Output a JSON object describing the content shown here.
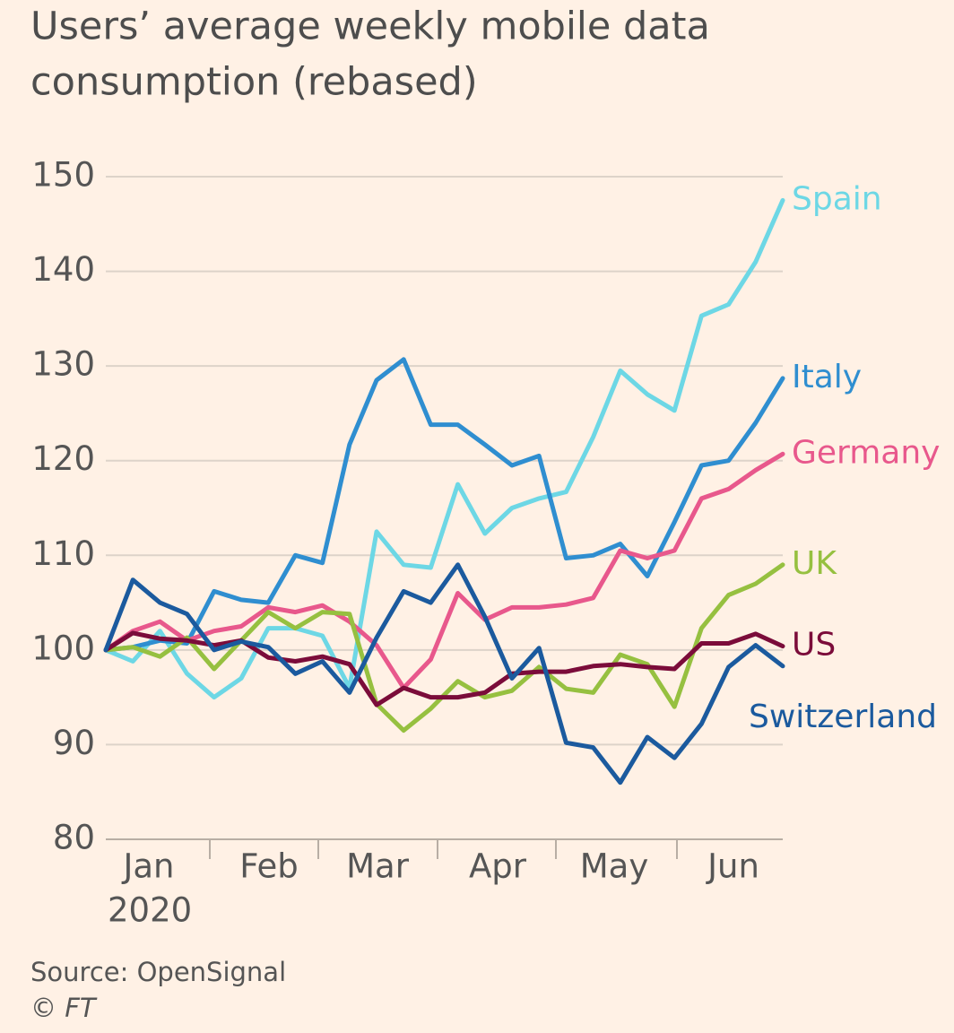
{
  "chart_data": {
    "type": "line",
    "title": "Users’ average weekly mobile data consumption (rebased)",
    "months": [
      "Jan",
      "Feb",
      "Mar",
      "Apr",
      "May",
      "Jun"
    ],
    "year": "2020",
    "source": "Source: OpenSignal",
    "credit": "© FT",
    "ylim": [
      80,
      150
    ],
    "yticks": [
      80,
      90,
      100,
      110,
      120,
      130,
      140,
      150
    ],
    "grid": true,
    "series": [
      {
        "name": "Spain",
        "color": "#6dd7e5",
        "values": [
          100,
          98.8,
          102,
          97.5,
          95,
          97,
          102.3,
          102.3,
          101.5,
          96,
          112.5,
          109,
          108.7,
          117.5,
          112.3,
          115,
          116,
          116.7,
          122.5,
          129.5,
          127,
          125.3,
          135.3,
          136.5,
          141,
          147.5
        ]
      },
      {
        "name": "Italy",
        "color": "#2f8ed0",
        "values": [
          100,
          100.3,
          101,
          100.7,
          106.2,
          105.3,
          105,
          110,
          109.2,
          121.7,
          128.5,
          130.7,
          123.8,
          123.8,
          121.7,
          119.5,
          120.5,
          109.7,
          110,
          111.2,
          107.8,
          113.5,
          119.5,
          120,
          124,
          128.7
        ]
      },
      {
        "name": "Germany",
        "color": "#e8588c",
        "values": [
          100,
          102,
          103,
          101,
          102,
          102.5,
          104.5,
          104,
          104.7,
          103,
          100.5,
          96,
          99,
          106,
          103.2,
          104.5,
          104.5,
          104.8,
          105.5,
          110.5,
          109.7,
          110.5,
          116,
          117,
          119,
          120.7
        ]
      },
      {
        "name": "UK",
        "color": "#96c040",
        "values": [
          100,
          100.3,
          99.3,
          101.3,
          98,
          101,
          104,
          102.3,
          104,
          103.8,
          94.3,
          91.5,
          93.8,
          96.7,
          95,
          95.7,
          98.2,
          95.9,
          95.5,
          99.5,
          98.5,
          94,
          102.3,
          105.8,
          107,
          109
        ]
      },
      {
        "name": "US",
        "color": "#7b0c3a",
        "values": [
          100,
          101.8,
          101.2,
          101,
          100.5,
          101,
          99.2,
          98.8,
          99.3,
          98.5,
          94.2,
          96,
          95,
          95,
          95.5,
          97.5,
          97.7,
          97.7,
          98.3,
          98.5,
          98.2,
          98,
          100.7,
          100.7,
          101.7,
          100.4
        ]
      },
      {
        "name": "Switzerland",
        "color": "#1b5a9e",
        "values": [
          100,
          107.4,
          105,
          103.8,
          100,
          100.9,
          100.3,
          97.5,
          98.8,
          95.5,
          101.3,
          106.2,
          105,
          109,
          103.5,
          97,
          100.2,
          90.2,
          89.7,
          86,
          90.8,
          88.6,
          92.2,
          98.2,
          100.5,
          98.3
        ]
      }
    ]
  }
}
